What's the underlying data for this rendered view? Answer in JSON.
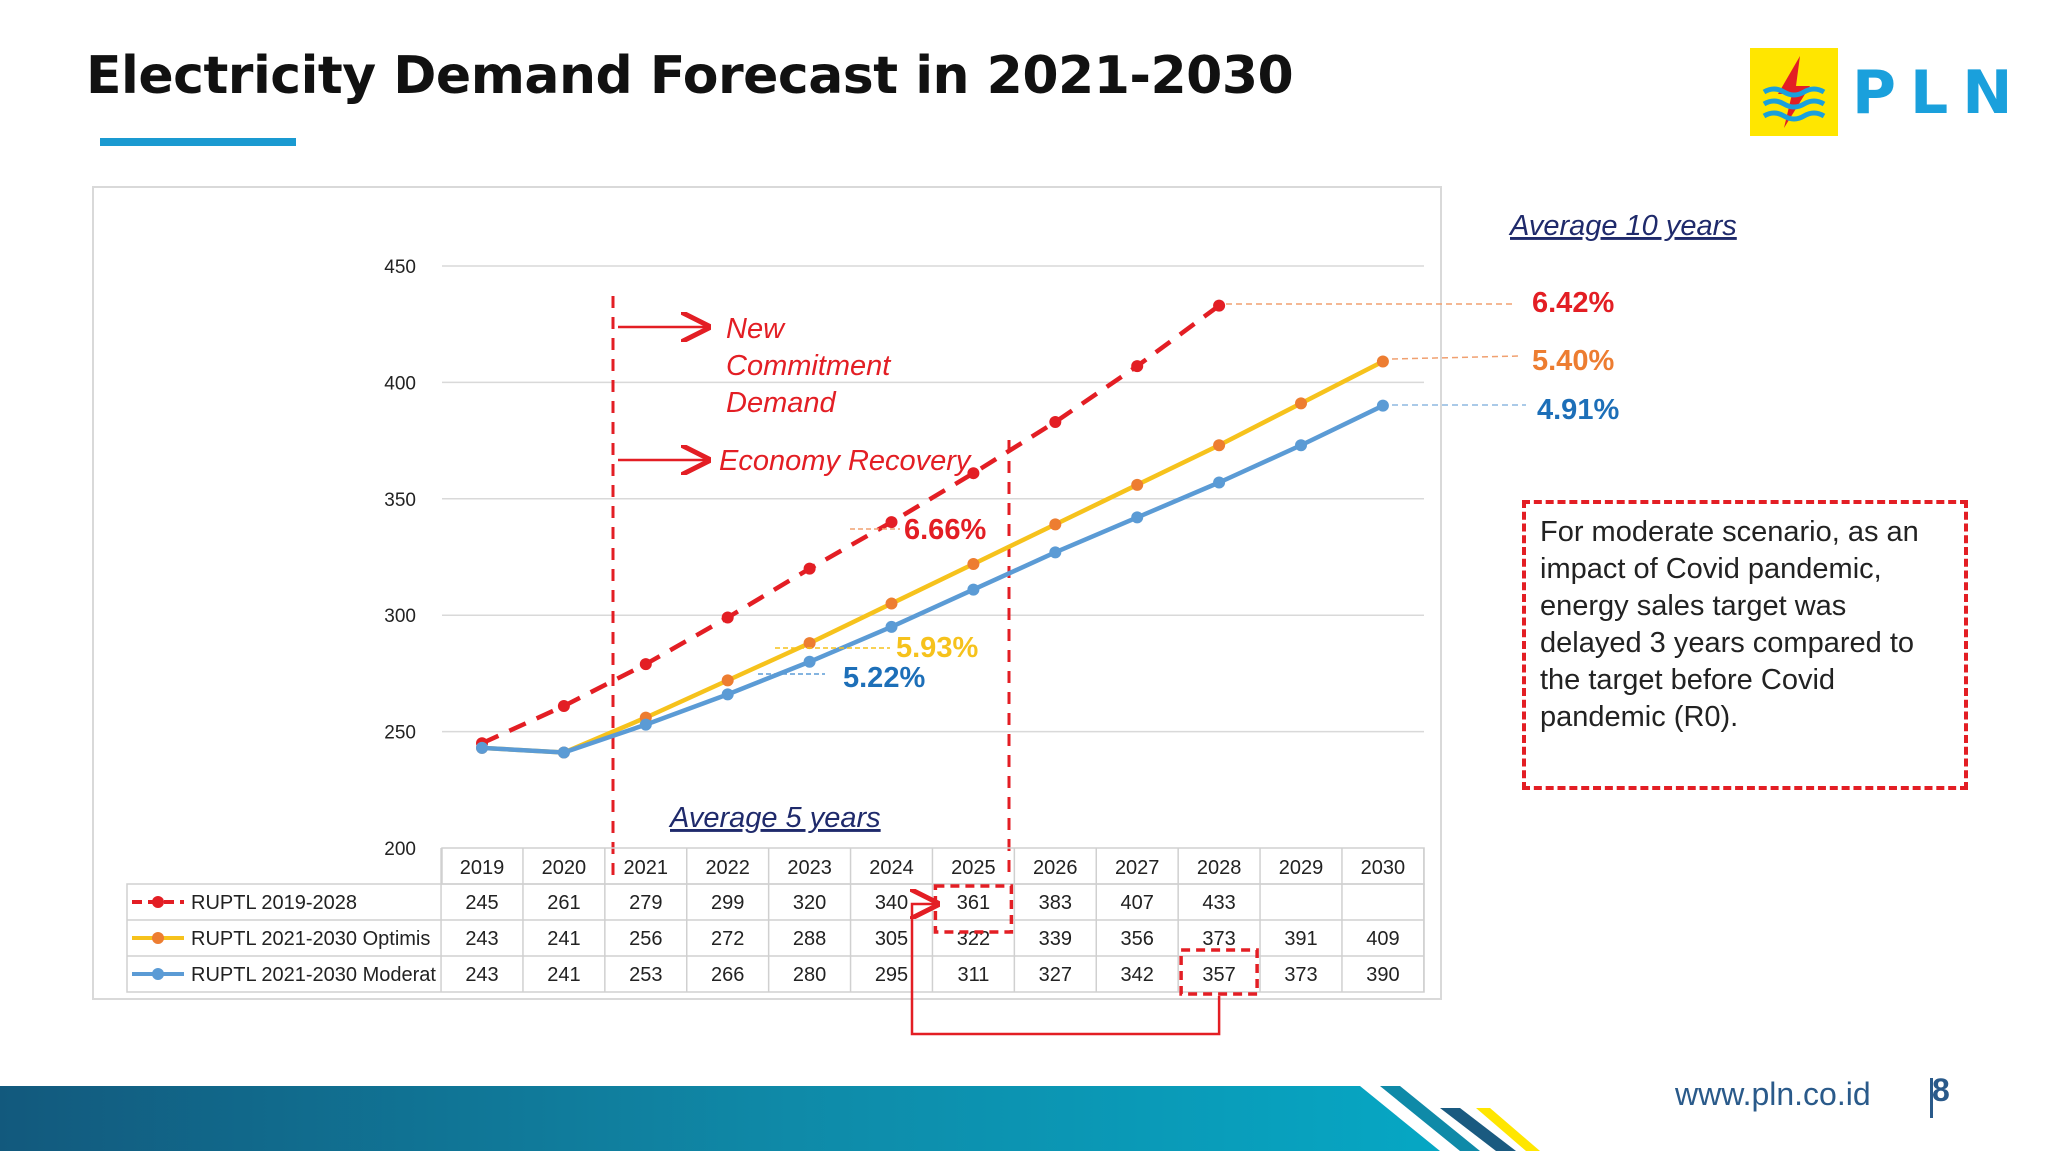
{
  "title": "Electricity Demand Forecast in 2021-2030",
  "logo": {
    "text": "PLN",
    "icon": "lightning-wave-icon"
  },
  "colors": {
    "red": "#e31e24",
    "orange": "#ed7d31",
    "yellow": "#f6c21c",
    "blue": "#5b9bd5",
    "accent": "#1a9ad1"
  },
  "chart_data": {
    "type": "line",
    "categories": [
      "2019",
      "2020",
      "2021",
      "2022",
      "2023",
      "2024",
      "2025",
      "2026",
      "2027",
      "2028",
      "2029",
      "2030"
    ],
    "ylim": [
      200,
      450
    ],
    "yticks": [
      "200",
      "250",
      "300",
      "350",
      "400",
      "450"
    ],
    "grid": true,
    "series": [
      {
        "name": "RUPTL 2019-2028",
        "style": "dashed",
        "values": [
          245,
          261,
          279,
          299,
          320,
          340,
          361,
          383,
          407,
          433,
          null,
          null
        ],
        "cells": [
          "245",
          "261",
          "279",
          "299",
          "320",
          "340",
          "361",
          "383",
          "407",
          "433",
          "",
          ""
        ]
      },
      {
        "name": "RUPTL 2021-2030 Optimis",
        "style": "solid",
        "values": [
          243,
          241,
          256,
          272,
          288,
          305,
          322,
          339,
          356,
          373,
          391,
          409
        ],
        "cells": [
          "243",
          "241",
          "256",
          "272",
          "288",
          "305",
          "322",
          "339",
          "356",
          "373",
          "391",
          "409"
        ]
      },
      {
        "name": "RUPTL 2021-2030 Moderat",
        "style": "solid",
        "values": [
          243,
          241,
          253,
          266,
          280,
          295,
          311,
          327,
          342,
          357,
          373,
          390
        ],
        "cells": [
          "243",
          "241",
          "253",
          "266",
          "280",
          "295",
          "311",
          "327",
          "342",
          "357",
          "373",
          "390"
        ]
      }
    ],
    "annotations": {
      "new_commitment": [
        "New",
        "Commitment",
        "Demand"
      ],
      "economy_recovery": "Economy Recovery",
      "avg5_label": "Average 5 years",
      "avg10_label": "Average 10 years",
      "avg5": {
        "red": "6.66%",
        "yellow": "5.93%",
        "blue": "5.22%"
      },
      "avg10": {
        "red": "6.42%",
        "orange": "5.40%",
        "blue": "4.91%"
      }
    }
  },
  "note": "For moderate scenario, as an impact of  Covid pandemic, energy sales target was delayed 3 years compared to the target before Covid pandemic (R0).",
  "footer": {
    "url": "www.pln.co.id",
    "page": "8"
  }
}
